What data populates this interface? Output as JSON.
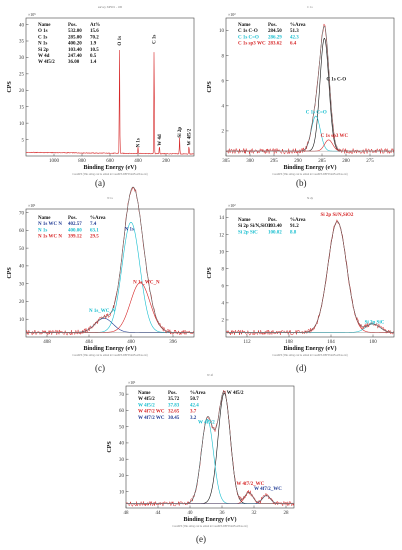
{
  "chart_data": [
    {
      "id": "a",
      "type": "line",
      "caption": "(a)",
      "top_text": "survey XPS01 - 100",
      "footer": "CasaXPS (This string can be edited in CasaXPS.DEF/PrintFootNote.txt)",
      "xlabel": "Binding Energy (eV)",
      "ylabel": "CPS",
      "multiplier": "×10⁵",
      "xlim": [
        1200,
        0
      ],
      "ylim": [
        0,
        42
      ],
      "xticks": [
        1000,
        800,
        600,
        400,
        200
      ],
      "yticks": [
        5,
        10,
        15,
        20,
        25,
        30,
        35,
        40
      ],
      "table": {
        "headers": [
          "Name",
          "Pos.",
          "At%"
        ],
        "rows": [
          [
            "O 1s",
            "532.00",
            "15.6"
          ],
          [
            "C 1s",
            "285.00",
            "70.2"
          ],
          [
            "N 1s",
            "400.20",
            "1.9"
          ],
          [
            "Si 2p",
            "103.40",
            "10.5"
          ],
          [
            "W 4d",
            "247.40",
            "0.5"
          ],
          [
            "W 4f5/2",
            "36.00",
            "1.4"
          ]
        ]
      },
      "peaks": [
        {
          "label": "O 1s",
          "x": 532,
          "height": 33
        },
        {
          "label": "N 1s",
          "x": 400,
          "height": 2
        },
        {
          "label": "C 1s",
          "x": 285,
          "height": 33.5
        },
        {
          "label": "W 4d",
          "x": 247,
          "height": 2.5
        },
        {
          "label": "Si 2p",
          "x": 103,
          "height": 5
        },
        {
          "label": "W 4f5/2",
          "x": 36,
          "height": 2.6
        }
      ],
      "colors": {
        "line": "#d62728",
        "text": "#111111"
      }
    },
    {
      "id": "b",
      "type": "line",
      "caption": "(b)",
      "top_text": "C 1s",
      "footer": "CasaXPS (This string can be edited in CasaXPS.DEF/PrintFootNote.txt)",
      "xlabel": "Binding Energy (eV)",
      "ylabel": "CPS",
      "multiplier": "×10³",
      "xlim": [
        305,
        270
      ],
      "ylim": [
        0,
        11
      ],
      "xticks": [
        305,
        300,
        295,
        290,
        285,
        280,
        275
      ],
      "yticks": [
        2,
        4,
        6,
        8,
        10
      ],
      "table": {
        "headers": [
          "Name",
          "Pos.",
          "%Area"
        ],
        "rows": [
          [
            "C 1s C-O",
            "284.50",
            "51.3"
          ],
          [
            "C 1s C=O",
            "286.29",
            "42.3"
          ],
          [
            "C 1s sp3 WC",
            "283.62",
            "6.4"
          ]
        ],
        "row_colors": [
          "#111111",
          "#17becf",
          "#d62728"
        ]
      },
      "peaks": [
        {
          "label": "C 1s C-O",
          "x": 284.5,
          "height": 9.0,
          "fwhm": 2.2
        },
        {
          "label": "C 1s C=O",
          "x": 286.29,
          "height": 2.8,
          "fwhm": 2.2
        },
        {
          "label": "C 1s sp3 WC",
          "x": 283.62,
          "height": 0.9,
          "fwhm": 2.0
        }
      ],
      "annotations": [
        "C 1s C-O",
        "C 1s C=O",
        "C 1s sp3 WC"
      ],
      "colors": {
        "data": "#d62728",
        "envelope": "#666666",
        "p1": "#111111",
        "p2": "#17becf",
        "p3": "#d62728"
      }
    },
    {
      "id": "c",
      "type": "line",
      "caption": "(c)",
      "top_text": "N 1s",
      "footer": "CasaXPS (This string can be edited in CasaXPS.DEF/PrintFootNote.txt)",
      "xlabel": "Binding Energy (eV)",
      "ylabel": "CPS",
      "multiplier": "×10¹",
      "xlim": [
        410,
        394
      ],
      "ylim": [
        0,
        72
      ],
      "xticks": [
        408,
        404,
        400,
        396
      ],
      "yticks": [
        10,
        20,
        30,
        40,
        50,
        60,
        70
      ],
      "table": {
        "headers": [
          "Name",
          "Pos.",
          "%Area"
        ],
        "rows": [
          [
            "N 1s WC N",
            "402.57",
            "7.4"
          ],
          [
            "N 1s",
            "400.00",
            "63.1"
          ],
          [
            "N 1s WC N",
            "399.12",
            "29.5"
          ]
        ],
        "row_colors": [
          "#1f3a93",
          "#17becf",
          "#d62728"
        ]
      },
      "peaks": [
        {
          "label": "N 1s WC N",
          "x": 402.57,
          "height": 8,
          "fwhm": 2.0
        },
        {
          "label": "N 1s",
          "x": 400.0,
          "height": 62,
          "fwhm": 2.0
        },
        {
          "label": "N 1s WC N",
          "x": 399.12,
          "height": 28,
          "fwhm": 2.2
        }
      ],
      "annotations": [
        "N 1s",
        "N 1s_WC_N",
        "N 1s_WC_N"
      ],
      "colors": {
        "data": "#d62728",
        "envelope": "#666666",
        "p1": "#1f3a93",
        "p2": "#17becf",
        "p3": "#d62728"
      }
    },
    {
      "id": "d",
      "type": "line",
      "caption": "(d)",
      "top_text": "Si 2p",
      "footer": "CasaXPS (This string can be edited in CasaXPS.DEF/PrintFootNote.txt)",
      "xlabel": "Binding Energy (eV)",
      "ylabel": "CPS",
      "multiplier": "×10²",
      "xlim": [
        114,
        98
      ],
      "ylim": [
        0,
        15
      ],
      "xticks": [
        112,
        108,
        104,
        100
      ],
      "yticks": [
        2,
        4,
        6,
        8,
        10,
        12,
        14
      ],
      "table": {
        "headers": [
          "Name",
          "Pos.",
          "%Area"
        ],
        "rows": [
          [
            "Si 2p Si/N,SiO2",
            "103.40",
            "91.2"
          ],
          [
            "Si 2p SiC",
            "100.02",
            "8.8"
          ]
        ],
        "row_colors": [
          "#111111",
          "#17becf"
        ]
      },
      "peaks": [
        {
          "label": "Si 2p Si/N,SiO2",
          "x": 103.4,
          "height": 13,
          "fwhm": 2.1
        },
        {
          "label": "Si 2p SiC",
          "x": 100.02,
          "height": 1.0,
          "fwhm": 1.6
        }
      ],
      "annotations": [
        "Si 2p Si/N,SiO2",
        "Si 2p SiC"
      ],
      "colors": {
        "data": "#d62728",
        "envelope": "#666666",
        "p1": "#d62728",
        "p2": "#17becf"
      }
    },
    {
      "id": "e",
      "type": "line",
      "caption": "(e)",
      "top_text": "W 4f",
      "footer": "CasaXPS (This string can be edited in CasaXPS.DEF/PrintFootNote.txt)",
      "xlabel": "Binding Energy (eV)",
      "ylabel": "CPS",
      "multiplier": "×10¹",
      "xlim": [
        48,
        27
      ],
      "ylim": [
        0,
        75
      ],
      "xticks": [
        48,
        44,
        40,
        36,
        32,
        28
      ],
      "yticks": [
        10,
        20,
        30,
        40,
        50,
        60,
        70
      ],
      "table": {
        "headers": [
          "Name",
          "Pos.",
          "%Area"
        ],
        "rows": [
          [
            "W 4f5/2",
            "35.72",
            "50.7"
          ],
          [
            "W 4f5/2",
            "37.83",
            "42.4"
          ],
          [
            "W 4f7/2 WC",
            "32.65",
            "3.7"
          ],
          [
            "W 4f7/2 WC",
            "30.45",
            "3.2"
          ]
        ],
        "row_colors": [
          "#111111",
          "#17becf",
          "#d62728",
          "#1f3a93"
        ]
      },
      "peaks": [
        {
          "label": "W 4f5/2",
          "x": 35.72,
          "height": 68,
          "fwhm": 1.8
        },
        {
          "label": "W 4f5/2",
          "x": 37.83,
          "height": 52,
          "fwhm": 1.8
        },
        {
          "label": "W 4f7/2 WC",
          "x": 32.65,
          "height": 7,
          "fwhm": 1.2
        },
        {
          "label": "W 4f7/2 WC",
          "x": 30.45,
          "height": 5,
          "fwhm": 1.2
        }
      ],
      "annotations": [
        "W 4f5/2",
        "W 4f5/2",
        "W 4f7/2_WC",
        "W 4f7/2_WC"
      ],
      "colors": {
        "data": "#d62728",
        "envelope": "#666666",
        "p1": "#111111",
        "p2": "#17becf",
        "p3": "#d62728",
        "p4": "#1f3a93"
      }
    }
  ]
}
